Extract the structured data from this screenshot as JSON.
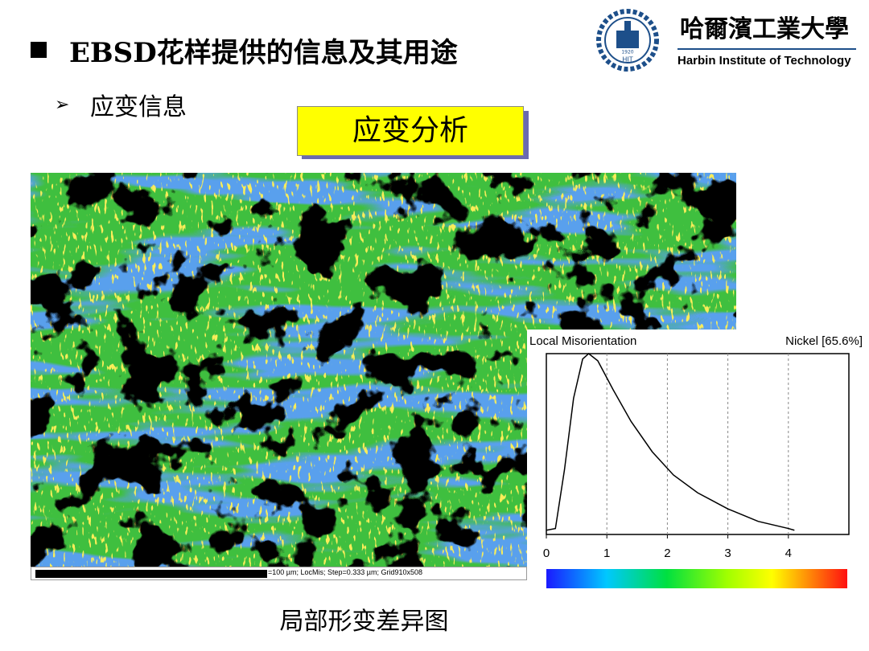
{
  "header": {
    "title": "EBSD花样提供的信息及其用途",
    "logo": {
      "name_cn": "哈爾濱工業大學",
      "name_en": "Harbin Institute of Technology",
      "emblem_text": "HIT",
      "emblem_year": "1920"
    }
  },
  "bullet": "应变信息",
  "box_label": "应变分析",
  "map": {
    "scale_text": "=100 µm; LocMis; Step=0.333 µm; Grid910x508"
  },
  "caption": "局部形变差异图",
  "chart_data": {
    "type": "line",
    "title": "Local Misorientation",
    "subtitle": "Nickel [65.6%]",
    "x": [
      0,
      0.15,
      0.3,
      0.45,
      0.6,
      0.7,
      0.85,
      1.1,
      1.4,
      1.75,
      2.1,
      2.5,
      3.0,
      3.5,
      4.0,
      4.1
    ],
    "values": [
      0.01,
      0.02,
      0.35,
      0.75,
      0.97,
      1.0,
      0.96,
      0.8,
      0.62,
      0.45,
      0.32,
      0.22,
      0.13,
      0.06,
      0.02,
      0.01
    ],
    "color": "#000000",
    "xlim": [
      0,
      5
    ],
    "xticks": [
      0,
      1,
      2,
      3,
      4
    ],
    "ylim": [
      0,
      1
    ],
    "grid": true
  }
}
